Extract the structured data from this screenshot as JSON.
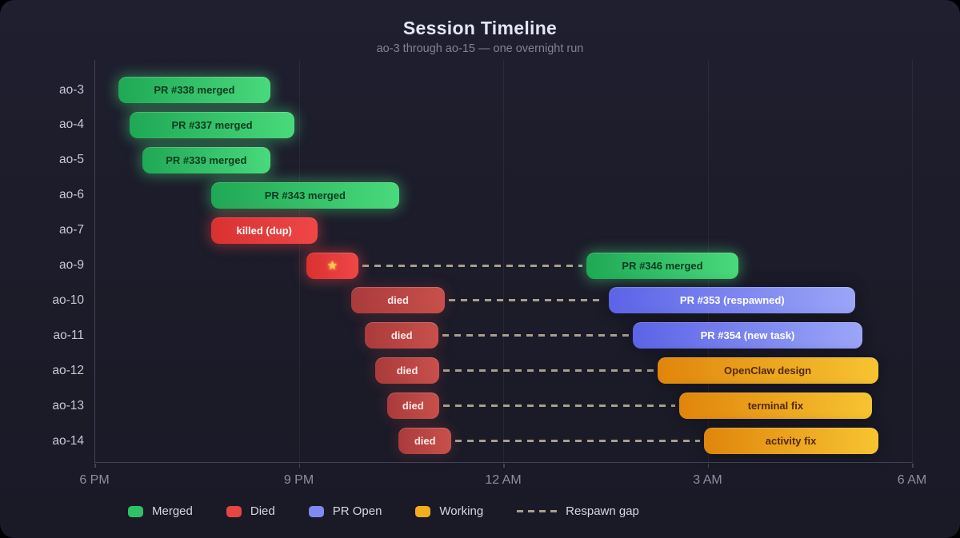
{
  "header": {
    "title": "Session Timeline",
    "subtitle": "ao-3 through ao-15 — one overnight run"
  },
  "icons": {
    "burst": "★"
  },
  "colors": {
    "background": "#1c1c2a",
    "axis": "#42435a",
    "gap_dash": "#a89f8c",
    "types": {
      "merged": {
        "from": "#1fa855",
        "to": "#4ad97c",
        "text": "#0b3b21",
        "glow": "rgba(74,217,124,0.42)",
        "swatch": "#2ec166"
      },
      "died-bright": {
        "from": "#d93030",
        "to": "#ef4747",
        "text": "#ffffff",
        "glow": "rgba(239,71,71,0.42)",
        "swatch": "#e74444"
      },
      "died": {
        "from": "#aa3b3b",
        "to": "#c8504b",
        "text": "#ffeaea",
        "glow": "rgba(200,80,75,0.18)",
        "swatch": "#c84848"
      },
      "pr-open": {
        "from": "#5c63e7",
        "to": "#9ba6f8",
        "text": "#ffffff",
        "glow": "rgba(0,0,0,0.25)",
        "swatch": "#8089f2"
      },
      "working": {
        "from": "#e0850b",
        "to": "#f7c431",
        "text": "#532a06",
        "glow": "rgba(0,0,0,0.25)",
        "swatch": "#f3ae1e"
      }
    }
  },
  "chart_data": {
    "type": "gantt-timeline",
    "title": "Session Timeline",
    "subtitle": "ao-3 through ao-15 — one overnight run",
    "x_axis": {
      "range_hours": [
        0,
        12
      ],
      "zero_is": "6 PM",
      "ticks": [
        {
          "label": "6 PM",
          "hour": 0
        },
        {
          "label": "9 PM",
          "hour": 3
        },
        {
          "label": "12 AM",
          "hour": 6
        },
        {
          "label": "3 AM",
          "hour": 9
        },
        {
          "label": "6 AM",
          "hour": 12
        }
      ]
    },
    "rows": [
      {
        "session": "ao-3",
        "bars": [
          {
            "label": "PR #338 merged",
            "type": "merged",
            "start": 0.34,
            "end": 2.57
          }
        ]
      },
      {
        "session": "ao-4",
        "bars": [
          {
            "label": "PR #337 merged",
            "type": "merged",
            "start": 0.51,
            "end": 2.92
          }
        ]
      },
      {
        "session": "ao-5",
        "bars": [
          {
            "label": "PR #339 merged",
            "type": "merged",
            "start": 0.69,
            "end": 2.57
          }
        ]
      },
      {
        "session": "ao-6",
        "bars": [
          {
            "label": "PR #343 merged",
            "type": "merged",
            "start": 1.7,
            "end": 4.46
          }
        ]
      },
      {
        "session": "ao-7",
        "bars": [
          {
            "label": "killed (dup)",
            "type": "died-bright",
            "start": 1.7,
            "end": 3.26
          }
        ]
      },
      {
        "session": "ao-9",
        "gap": [
          3.86,
          7.21
        ],
        "bars": [
          {
            "label": "",
            "icon": "burst",
            "type": "died-bright",
            "start": 3.1,
            "end": 3.86
          },
          {
            "label": "PR #346 merged",
            "type": "merged",
            "start": 7.21,
            "end": 9.44
          }
        ]
      },
      {
        "session": "ao-10",
        "gap": [
          5.13,
          7.54
        ],
        "bars": [
          {
            "label": "died",
            "type": "died",
            "start": 3.76,
            "end": 5.13
          },
          {
            "label": "PR #353 (respawned)",
            "type": "pr-open",
            "start": 7.54,
            "end": 11.16
          }
        ]
      },
      {
        "session": "ao-11",
        "gap": [
          5.04,
          7.89
        ],
        "bars": [
          {
            "label": "died",
            "type": "died",
            "start": 3.96,
            "end": 5.04
          },
          {
            "label": "PR #354 (new task)",
            "type": "pr-open",
            "start": 7.89,
            "end": 11.26
          }
        ]
      },
      {
        "session": "ao-12",
        "gap": [
          5.05,
          8.25
        ],
        "bars": [
          {
            "label": "died",
            "type": "died",
            "start": 4.11,
            "end": 5.05
          },
          {
            "label": "OpenClaw design",
            "type": "working",
            "start": 8.25,
            "end": 11.49
          }
        ]
      },
      {
        "session": "ao-13",
        "gap": [
          5.05,
          8.57
        ],
        "bars": [
          {
            "label": "died",
            "type": "died",
            "start": 4.28,
            "end": 5.05
          },
          {
            "label": "terminal fix",
            "type": "working",
            "start": 8.57,
            "end": 11.4
          }
        ]
      },
      {
        "session": "ao-14",
        "gap": [
          5.23,
          8.93
        ],
        "bars": [
          {
            "label": "died",
            "type": "died",
            "start": 4.45,
            "end": 5.23
          },
          {
            "label": "activity fix",
            "type": "working",
            "start": 8.93,
            "end": 11.49
          }
        ]
      }
    ],
    "legend": [
      {
        "label": "Merged",
        "type": "merged"
      },
      {
        "label": "Died",
        "type": "died-bright"
      },
      {
        "label": "PR Open",
        "type": "pr-open"
      },
      {
        "label": "Working",
        "type": "working"
      },
      {
        "label": "Respawn gap",
        "type": "gap-dash"
      }
    ]
  }
}
